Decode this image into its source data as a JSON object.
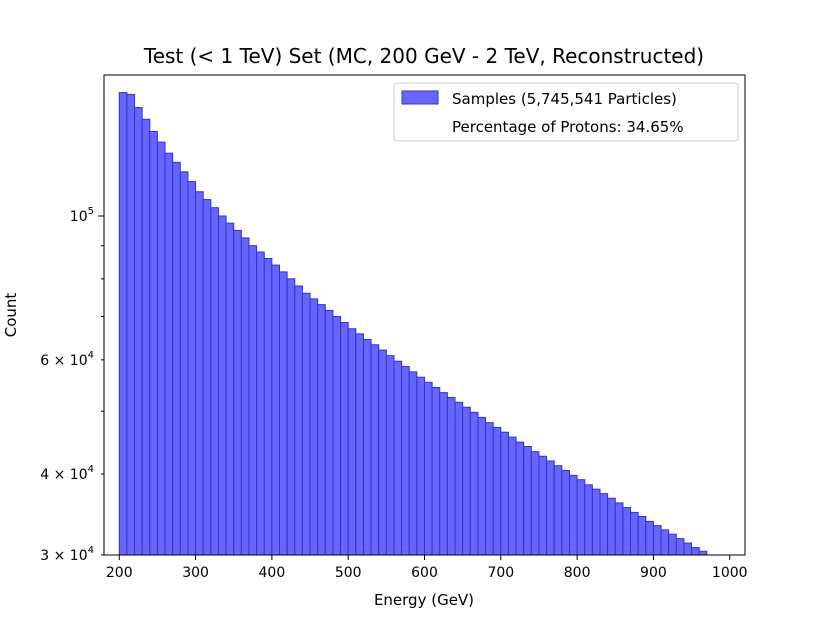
{
  "chart_data": {
    "type": "bar",
    "title": "Test (< 1 TeV) Set (MC, 200 GeV - 2 TeV, Reconstructed)",
    "xlabel": "Energy (GeV)",
    "ylabel": "Count",
    "xlim": [
      180,
      1020
    ],
    "ylim": [
      30000,
      165000
    ],
    "yscale": "log",
    "grid": false,
    "legend_position": "top-right",
    "legend": [
      {
        "label": "Samples (5,745,541 Particles)",
        "swatch": true
      },
      {
        "label": "Percentage of Protons: 34.65%",
        "swatch": false
      }
    ],
    "xticks": [
      200,
      300,
      400,
      500,
      600,
      700,
      800,
      900,
      1000
    ],
    "xtick_labels": [
      "200",
      "300",
      "400",
      "500",
      "600",
      "700",
      "800",
      "900",
      "1000"
    ],
    "yticks_major": [
      {
        "value": 100000,
        "base": "10",
        "exp": "5"
      }
    ],
    "yticks_minor_labeled": [
      {
        "value": 30000,
        "mant": "3",
        "exp": "4"
      },
      {
        "value": 40000,
        "mant": "4",
        "exp": "4"
      },
      {
        "value": 60000,
        "mant": "6",
        "exp": "4"
      }
    ],
    "yticks_minor_unlabeled": [
      50000,
      70000,
      80000,
      90000
    ],
    "bin_start": 200,
    "bin_width": 10,
    "values": [
      155000,
      154000,
      147000,
      141000,
      135000,
      130000,
      125000,
      121000,
      117000,
      113000,
      109000,
      106000,
      103000,
      100000,
      97500,
      95000,
      92500,
      90000,
      88000,
      86000,
      84000,
      82000,
      80000,
      78000,
      76000,
      74500,
      73000,
      71500,
      70000,
      68500,
      67000,
      65800,
      64500,
      63300,
      62100,
      60900,
      59700,
      58600,
      57500,
      56400,
      55400,
      54400,
      53400,
      52500,
      51600,
      50700,
      49800,
      48900,
      48000,
      47200,
      46400,
      45600,
      44800,
      44100,
      43300,
      42600,
      41900,
      41200,
      40500,
      39800,
      39200,
      38500,
      37900,
      37300,
      36700,
      36100,
      35500,
      34900,
      34400,
      33800,
      33300,
      32800,
      32300,
      31800,
      31300,
      30800,
      30400,
      29950,
      29500,
      29100
    ],
    "colors": {
      "bar_fill": "#6666ff",
      "bar_edge": "#3333cc"
    }
  }
}
